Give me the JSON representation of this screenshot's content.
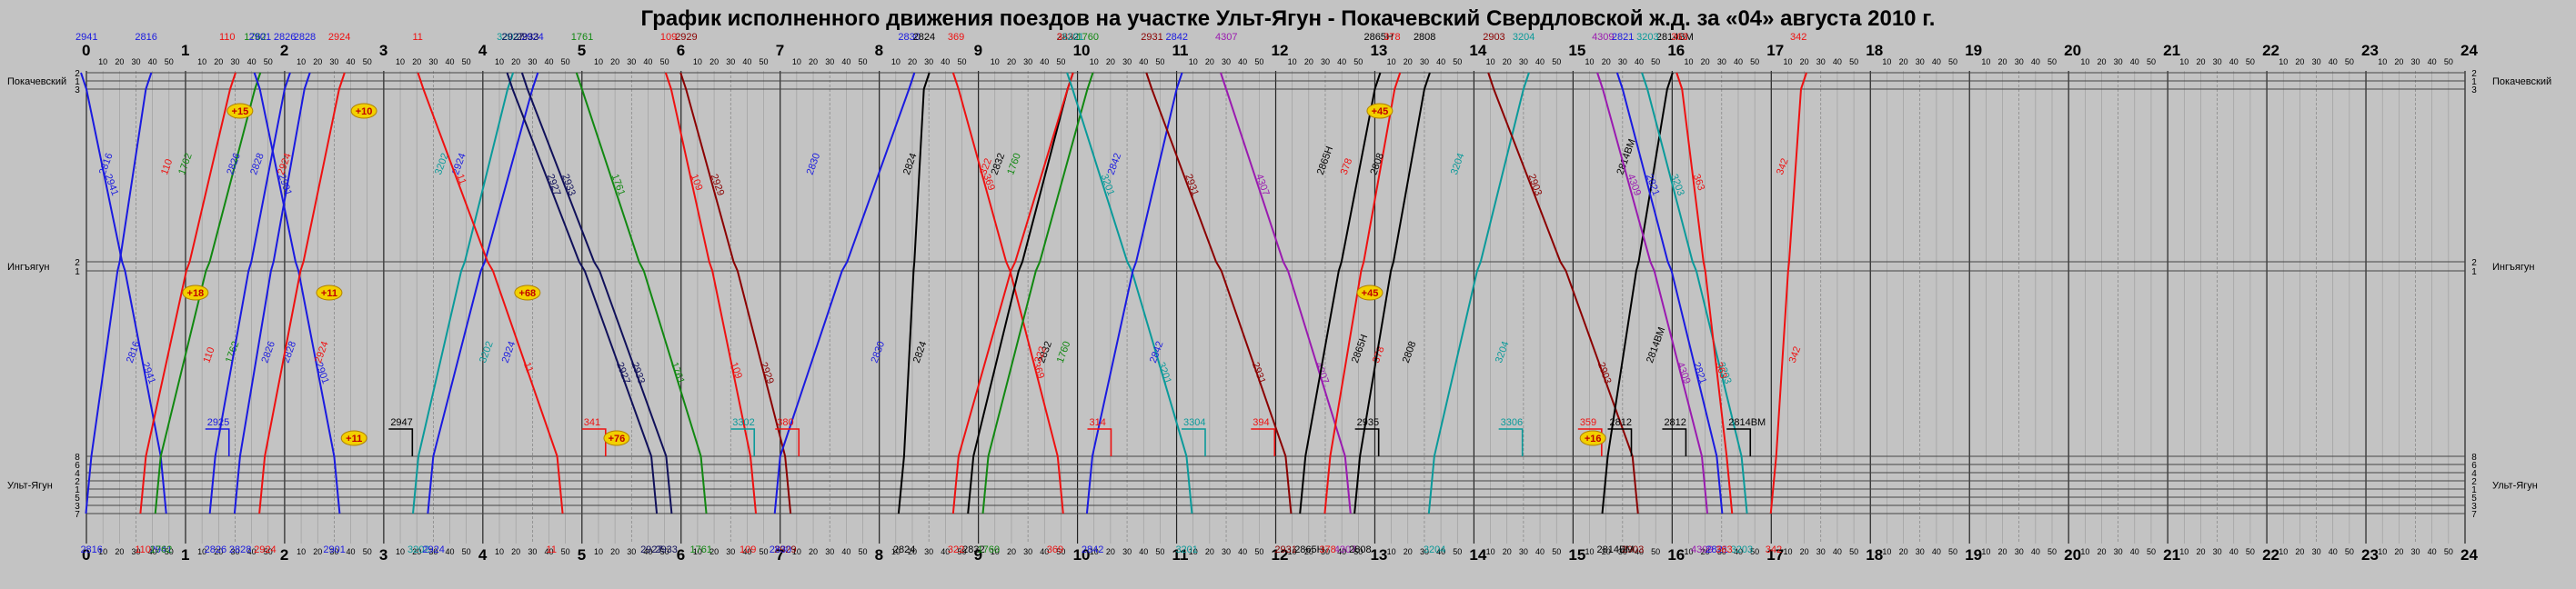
{
  "title": "График исполненного движения поездов на участке Ульт-Ягун - Покачевский  Свердловской ж.д. за «04» августа 2010 г.",
  "hours": [
    "0",
    "1",
    "2",
    "3",
    "4",
    "5",
    "6",
    "7",
    "8",
    "9",
    "10",
    "11",
    "12",
    "13",
    "14",
    "15",
    "16",
    "17",
    "18",
    "19",
    "20",
    "21",
    "22",
    "23",
    "24"
  ],
  "minute_ticks": [
    "10",
    "20",
    "30",
    "40",
    "50"
  ],
  "stations": [
    {
      "name": "Покачевский",
      "tracks": [
        "2",
        "1",
        "3"
      ]
    },
    {
      "name": "Ингъягун",
      "tracks": [
        "2",
        "1"
      ]
    },
    {
      "name": "Ульт-Ягун",
      "tracks": [
        "8",
        "6",
        "4",
        "2",
        "1",
        "5",
        "3",
        "7"
      ]
    }
  ],
  "colors": {
    "background": "#c3c3c3",
    "blue": "#1a1ae0",
    "red": "#ee1111",
    "green": "#118811",
    "teal": "#0a9a9a",
    "purple": "#9a1ab0",
    "darkred": "#8b0000",
    "black": "#000000",
    "navy": "#10105a",
    "badge_fill": "#f2d000"
  },
  "trains": [
    {
      "number": "2816",
      "color": "blue",
      "dir": "up",
      "t0": 0.05,
      "t1": 0.6
    },
    {
      "number": "2941",
      "color": "blue",
      "dir": "down",
      "t0": 0.0,
      "t1": 0.75
    },
    {
      "number": "110",
      "color": "red",
      "dir": "up",
      "t0": 0.6,
      "t1": 1.45
    },
    {
      "number": "1762",
      "color": "green",
      "dir": "up",
      "t0": 0.75,
      "t1": 1.7
    },
    {
      "number": "2826",
      "color": "blue",
      "dir": "up",
      "t0": 1.3,
      "t1": 2.0
    },
    {
      "number": "2828",
      "color": "blue",
      "dir": "up",
      "t0": 1.55,
      "t1": 2.2
    },
    {
      "number": "2901",
      "color": "blue",
      "dir": "down",
      "t0": 1.75,
      "t1": 2.5
    },
    {
      "number": "2924",
      "color": "red",
      "dir": "up",
      "t0": 1.8,
      "t1": 2.55
    },
    {
      "number": "3202",
      "color": "teal",
      "dir": "up",
      "t0": 3.35,
      "t1": 4.25
    },
    {
      "number": "2924",
      "color": "blue",
      "dir": "up",
      "t0": 3.5,
      "t1": 4.5
    },
    {
      "number": "11",
      "color": "red",
      "dir": "down",
      "t0": 3.4,
      "t1": 4.75
    },
    {
      "number": "2927",
      "color": "navy",
      "dir": "down",
      "t0": 4.3,
      "t1": 5.7
    },
    {
      "number": "2933",
      "color": "navy",
      "dir": "down",
      "t0": 4.45,
      "t1": 5.85
    },
    {
      "number": "1761",
      "color": "green",
      "dir": "down",
      "t0": 5.0,
      "t1": 6.2
    },
    {
      "number": "109",
      "color": "red",
      "dir": "down",
      "t0": 5.9,
      "t1": 6.7
    },
    {
      "number": "2929",
      "color": "darkred",
      "dir": "down",
      "t0": 6.05,
      "t1": 7.05
    },
    {
      "number": "2830",
      "color": "blue",
      "dir": "up",
      "t0": 7.0,
      "t1": 8.3
    },
    {
      "number": "2824",
      "color": "black",
      "dir": "up",
      "t0": 8.25,
      "t1": 8.45
    },
    {
      "number": "369",
      "color": "red",
      "dir": "down",
      "t0": 8.8,
      "t1": 9.8
    },
    {
      "number": "2832",
      "color": "black",
      "dir": "up",
      "t0": 8.95,
      "t1": 9.9
    },
    {
      "number": "1760",
      "color": "green",
      "dir": "up",
      "t0": 9.1,
      "t1": 10.1
    },
    {
      "number": "322",
      "color": "red",
      "dir": "up",
      "t0": 8.8,
      "t1": 9.9
    },
    {
      "number": "3201",
      "color": "teal",
      "dir": "down",
      "t0": 9.95,
      "t1": 11.1
    },
    {
      "number": "2842",
      "color": "blue",
      "dir": "up",
      "t0": 10.15,
      "t1": 11.0
    },
    {
      "number": "2931",
      "color": "darkred",
      "dir": "down",
      "t0": 10.75,
      "t1": 12.1
    },
    {
      "number": "4307",
      "color": "purple",
      "dir": "down",
      "t0": 11.5,
      "t1": 12.7
    },
    {
      "number": "2865Н",
      "color": "black",
      "dir": "up",
      "t0": 12.3,
      "t1": 13.0
    },
    {
      "number": "378",
      "color": "red",
      "dir": "up",
      "t0": 12.55,
      "t1": 13.2
    },
    {
      "number": "2808",
      "color": "black",
      "dir": "up",
      "t0": 12.85,
      "t1": 13.5
    },
    {
      "number": "3204",
      "color": "teal",
      "dir": "up",
      "t0": 13.6,
      "t1": 14.5
    },
    {
      "number": "2903",
      "color": "darkred",
      "dir": "down",
      "t0": 14.2,
      "t1": 15.6
    },
    {
      "number": "2814ВМ",
      "color": "black",
      "dir": "up",
      "t0": 15.35,
      "t1": 15.95
    },
    {
      "number": "4309",
      "color": "purple",
      "dir": "down",
      "t0": 15.3,
      "t1": 16.3
    },
    {
      "number": "2821",
      "color": "blue",
      "dir": "down",
      "t0": 15.5,
      "t1": 16.45
    },
    {
      "number": "3203",
      "color": "teal",
      "dir": "down",
      "t0": 15.75,
      "t1": 16.7
    },
    {
      "number": "363",
      "color": "red",
      "dir": "down",
      "t0": 16.1,
      "t1": 16.55
    },
    {
      "number": "342",
      "color": "red",
      "dir": "up",
      "t0": 17.05,
      "t1": 17.3
    }
  ],
  "dwell_labels": [
    {
      "text": "2812",
      "color": "black",
      "t": 15.9
    },
    {
      "text": "2812",
      "color": "black",
      "t": 15.35
    },
    {
      "text": "2814ВМ",
      "color": "black",
      "t": 16.55
    },
    {
      "text": "3306",
      "color": "teal",
      "t": 14.25
    },
    {
      "text": "3304",
      "color": "teal",
      "t": 11.05
    },
    {
      "text": "3302",
      "color": "teal",
      "t": 6.5
    },
    {
      "text": "380",
      "color": "red",
      "t": 6.95
    },
    {
      "text": "341",
      "color": "red",
      "t": 5.0
    },
    {
      "text": "314",
      "color": "red",
      "t": 10.1
    },
    {
      "text": "394",
      "color": "red",
      "t": 11.75
    },
    {
      "text": "2935",
      "color": "black",
      "t": 12.8
    },
    {
      "text": "359",
      "color": "red",
      "t": 15.05
    },
    {
      "text": "2947",
      "color": "black",
      "t": 3.05
    },
    {
      "text": "2925",
      "color": "blue",
      "t": 1.2
    }
  ],
  "badges": [
    {
      "text": "+15",
      "t": 1.55,
      "station": 0
    },
    {
      "text": "+10",
      "t": 2.8,
      "station": 0
    },
    {
      "text": "+18",
      "t": 1.1,
      "station": 1
    },
    {
      "text": "+11",
      "t": 2.45,
      "station": 1
    },
    {
      "text": "+68",
      "t": 4.45,
      "station": 1
    },
    {
      "text": "+45",
      "t": 13.05,
      "station": 0
    },
    {
      "text": "+45",
      "t": 12.95,
      "station": 1
    },
    {
      "text": "+11",
      "t": 2.7,
      "station": 2
    },
    {
      "text": "+76",
      "t": 5.35,
      "station": 2
    },
    {
      "text": "+16",
      "t": 15.2,
      "station": 2
    }
  ]
}
